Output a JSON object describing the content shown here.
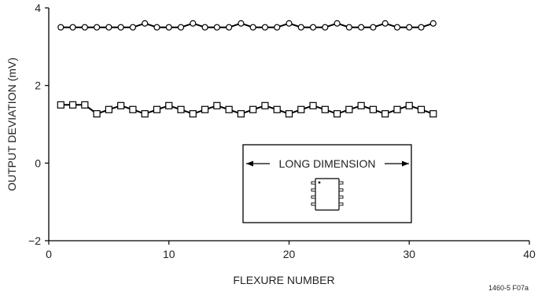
{
  "chart_data": {
    "type": "line",
    "xlabel": "FLEXURE NUMBER",
    "ylabel": "OUTPUT DEVIATION (mV)",
    "xlim": [
      0,
      40
    ],
    "ylim": [
      -2,
      4
    ],
    "x_ticks": [
      0,
      10,
      20,
      30,
      40
    ],
    "x_tick_labels": [
      "0",
      "10",
      "20",
      "30",
      "40"
    ],
    "y_ticks": [
      -2,
      0,
      2,
      4
    ],
    "y_tick_labels": [
      "−2",
      "0",
      "2",
      "4"
    ],
    "grid": false,
    "legend": "none",
    "x": [
      1,
      2,
      3,
      4,
      5,
      6,
      7,
      8,
      9,
      10,
      11,
      12,
      13,
      14,
      15,
      16,
      17,
      18,
      19,
      20,
      21,
      22,
      23,
      24,
      25,
      26,
      27,
      28,
      29,
      30,
      31,
      32
    ],
    "series": [
      {
        "marker": "circle",
        "values": [
          3.5,
          3.5,
          3.5,
          3.5,
          3.5,
          3.5,
          3.5,
          3.6,
          3.5,
          3.5,
          3.5,
          3.6,
          3.5,
          3.5,
          3.5,
          3.6,
          3.5,
          3.5,
          3.5,
          3.6,
          3.5,
          3.5,
          3.5,
          3.6,
          3.5,
          3.5,
          3.5,
          3.6,
          3.5,
          3.5,
          3.5,
          3.6
        ]
      },
      {
        "marker": "square",
        "values": [
          1.5,
          1.5,
          1.5,
          1.27,
          1.38,
          1.48,
          1.38,
          1.27,
          1.38,
          1.48,
          1.38,
          1.27,
          1.38,
          1.48,
          1.38,
          1.27,
          1.38,
          1.48,
          1.38,
          1.27,
          1.38,
          1.48,
          1.38,
          1.27,
          1.38,
          1.48,
          1.38,
          1.27,
          1.38,
          1.48,
          1.38,
          1.27
        ]
      }
    ],
    "inset": {
      "label": "LONG DIMENSION",
      "icon": "ic-package-icon"
    },
    "note": "1460-5 F07a"
  },
  "colors": {
    "line": "#000000",
    "marker_fill": "#ffffff",
    "text": "#222222"
  }
}
